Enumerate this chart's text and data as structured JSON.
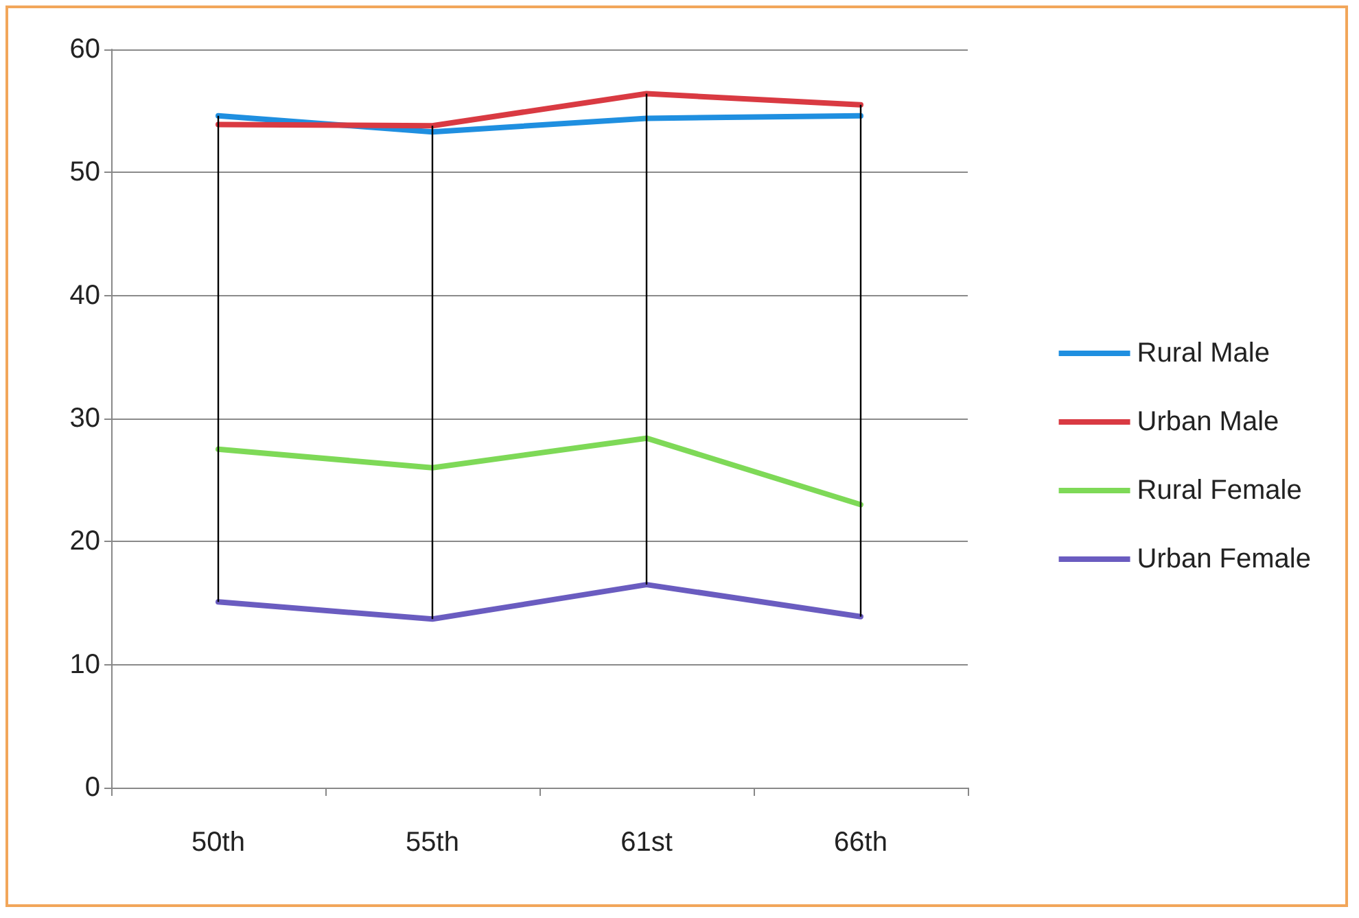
{
  "chart_data": {
    "type": "line",
    "categories": [
      "50th",
      "55th",
      "61st",
      "66th"
    ],
    "series": [
      {
        "name": "Rural Male",
        "color": "#1f8fe0",
        "values": [
          54.6,
          53.3,
          54.4,
          54.6
        ]
      },
      {
        "name": "Urban Male",
        "color": "#d93a42",
        "values": [
          53.9,
          53.8,
          56.4,
          55.5
        ]
      },
      {
        "name": "Rural Female",
        "color": "#7ed957",
        "values": [
          27.5,
          26.0,
          28.4,
          23.0
        ]
      },
      {
        "name": "Urban Female",
        "color": "#6a5cc0",
        "values": [
          15.1,
          13.7,
          16.5,
          13.9
        ],
        "errors": [
          [
            15.1,
            54.6
          ],
          [
            13.7,
            53.8
          ],
          [
            16.5,
            56.4
          ],
          [
            13.9,
            55.5
          ]
        ]
      }
    ],
    "ylim": [
      0,
      60
    ],
    "yticks": [
      0,
      10,
      20,
      30,
      40,
      50,
      60
    ],
    "grid": "y",
    "legend": "right",
    "marker": "none",
    "line_style": "solid"
  }
}
